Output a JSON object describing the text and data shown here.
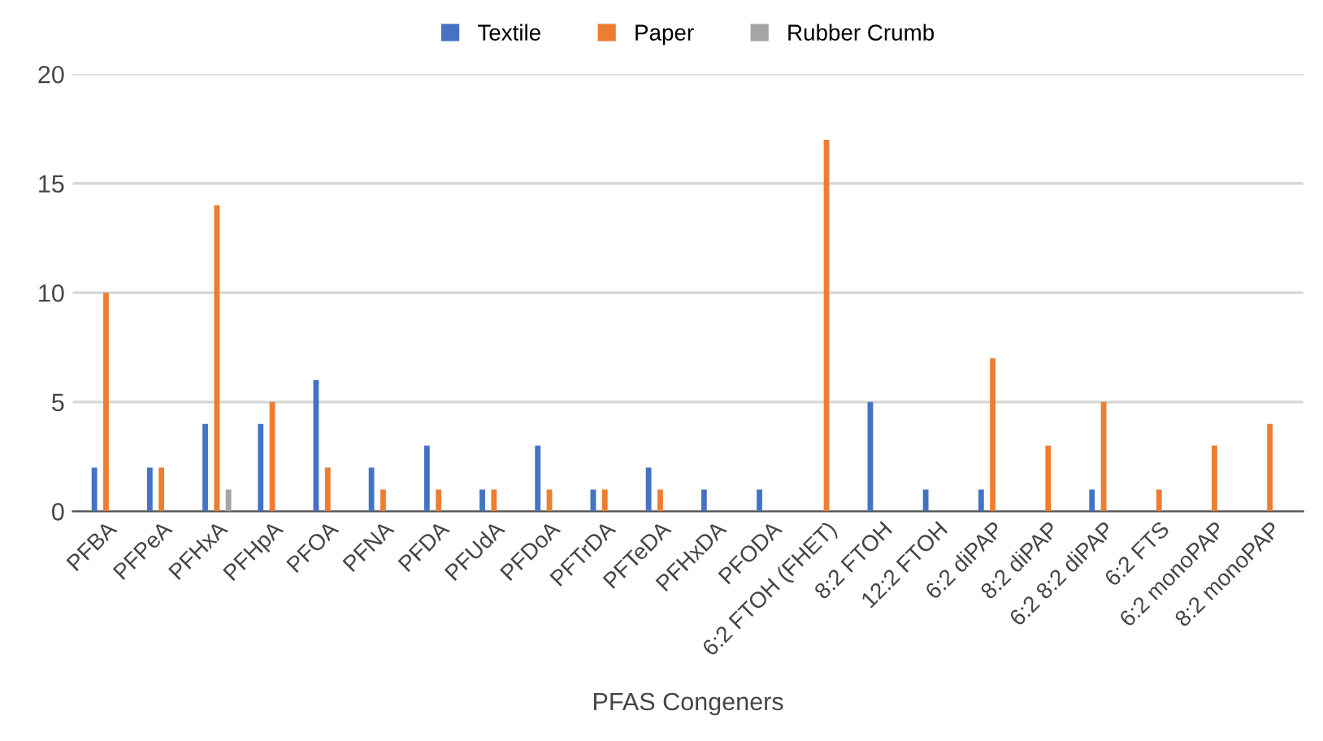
{
  "chart_data": {
    "type": "bar",
    "xlabel": "PFAS Congeners",
    "categories": [
      "PFBA",
      "PFPeA",
      "PFHxA",
      "PFHpA",
      "PFOA",
      "PFNA",
      "PFDA",
      "PFUdA",
      "PFDoA",
      "PFTrDA",
      "PFTeDA",
      "PFHxDA",
      "PFODA",
      "6:2 FTOH (FHET)",
      "8:2 FTOH",
      "12:2 FTOH",
      "6:2 diPAP",
      "8:2 diPAP",
      "6:2 8:2 diPAP",
      "6:2 FTS",
      "6:2 monoPAP",
      "8:2 monoPAP"
    ],
    "series": [
      {
        "name": "Textile",
        "color": "#4472c4",
        "values": [
          2,
          2,
          4,
          4,
          6,
          2,
          3,
          1,
          3,
          1,
          2,
          1,
          1,
          0,
          5,
          1,
          1,
          0,
          1,
          0,
          0,
          0
        ]
      },
      {
        "name": "Paper",
        "color": "#ed7d31",
        "values": [
          10,
          2,
          14,
          5,
          2,
          1,
          1,
          1,
          1,
          1,
          1,
          0,
          0,
          17,
          0,
          0,
          7,
          3,
          5,
          1,
          3,
          4
        ]
      },
      {
        "name": "Rubber Crumb",
        "color": "#a5a5a5",
        "values": [
          0,
          0,
          1,
          0,
          0,
          0,
          0,
          0,
          0,
          0,
          0,
          0,
          0,
          0,
          0,
          0,
          0,
          0,
          0,
          0,
          0,
          0
        ]
      }
    ],
    "ylim": [
      0,
      20
    ],
    "yticks": [
      0,
      5,
      10,
      15,
      20
    ],
    "grid": "y",
    "legend": "top"
  }
}
